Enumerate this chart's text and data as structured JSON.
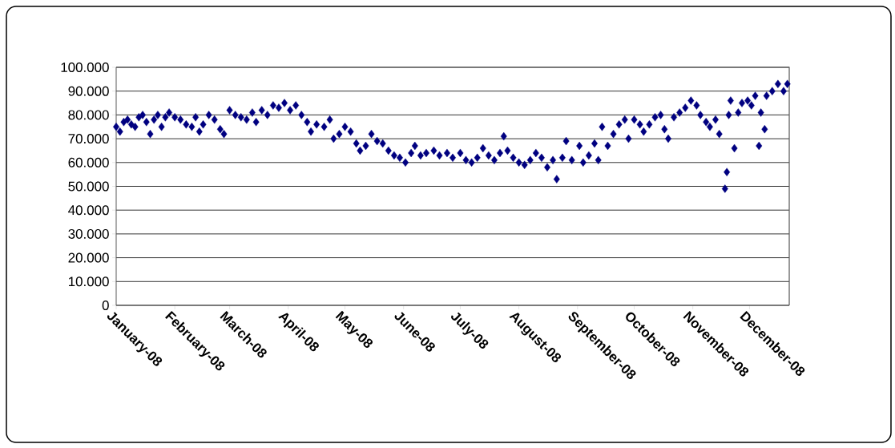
{
  "chart_data": {
    "type": "scatter",
    "color": "#000080",
    "marker": "diamond",
    "grid": "y",
    "xlim": [
      "2008-01-01",
      "2008-12-22"
    ],
    "xticks": [
      {
        "value": "2008-01-01",
        "label": "January-08"
      },
      {
        "value": "2008-02-01",
        "label": "February-08"
      },
      {
        "value": "2008-03-01",
        "label": "March-08"
      },
      {
        "value": "2008-04-01",
        "label": "April-08"
      },
      {
        "value": "2008-05-01",
        "label": "May-08"
      },
      {
        "value": "2008-06-01",
        "label": "June-08"
      },
      {
        "value": "2008-07-01",
        "label": "July-08"
      },
      {
        "value": "2008-08-01",
        "label": "August-08"
      },
      {
        "value": "2008-09-01",
        "label": "September-08"
      },
      {
        "value": "2008-10-01",
        "label": "October-08"
      },
      {
        "value": "2008-11-01",
        "label": "November-08"
      },
      {
        "value": "2008-12-01",
        "label": "December-08"
      }
    ],
    "ylim": [
      0,
      100000
    ],
    "yticks": [
      0,
      {
        "value": 10000,
        "label": "10.000"
      },
      {
        "value": 20000,
        "label": "20.000"
      },
      {
        "value": 30000,
        "label": "30.000"
      },
      {
        "value": 40000,
        "label": "40.000"
      },
      {
        "value": 50000,
        "label": "50.000"
      },
      {
        "value": 60000,
        "label": "60.000"
      },
      {
        "value": 70000,
        "label": "70.000"
      },
      {
        "value": 80000,
        "label": "80.000"
      },
      {
        "value": 90000,
        "label": "90.000"
      },
      {
        "value": 100000,
        "label": "100.000"
      }
    ],
    "x": [
      "2008-01-01",
      "2008-01-03",
      "2008-01-05",
      "2008-01-07",
      "2008-01-09",
      "2008-01-11",
      "2008-01-13",
      "2008-01-15",
      "2008-01-17",
      "2008-01-19",
      "2008-01-21",
      "2008-01-23",
      "2008-01-25",
      "2008-01-27",
      "2008-01-29",
      "2008-02-01",
      "2008-02-04",
      "2008-02-07",
      "2008-02-10",
      "2008-02-12",
      "2008-02-14",
      "2008-02-16",
      "2008-02-19",
      "2008-02-22",
      "2008-02-25",
      "2008-02-27",
      "2008-03-01",
      "2008-03-04",
      "2008-03-07",
      "2008-03-10",
      "2008-03-13",
      "2008-03-15",
      "2008-03-18",
      "2008-03-21",
      "2008-03-24",
      "2008-03-27",
      "2008-03-30",
      "2008-04-02",
      "2008-04-05",
      "2008-04-08",
      "2008-04-11",
      "2008-04-13",
      "2008-04-16",
      "2008-04-20",
      "2008-04-23",
      "2008-04-25",
      "2008-04-28",
      "2008-05-01",
      "2008-05-04",
      "2008-05-07",
      "2008-05-09",
      "2008-05-12",
      "2008-05-15",
      "2008-05-18",
      "2008-05-21",
      "2008-05-24",
      "2008-05-27",
      "2008-05-30",
      "2008-06-02",
      "2008-06-05",
      "2008-06-07",
      "2008-06-10",
      "2008-06-13",
      "2008-06-17",
      "2008-06-20",
      "2008-06-24",
      "2008-06-27",
      "2008-07-01",
      "2008-07-04",
      "2008-07-07",
      "2008-07-10",
      "2008-07-13",
      "2008-07-16",
      "2008-07-19",
      "2008-07-22",
      "2008-07-24",
      "2008-07-26",
      "2008-07-29",
      "2008-08-01",
      "2008-08-04",
      "2008-08-07",
      "2008-08-10",
      "2008-08-13",
      "2008-08-16",
      "2008-08-19",
      "2008-08-21",
      "2008-08-24",
      "2008-08-26",
      "2008-08-29",
      "2008-09-02",
      "2008-09-04",
      "2008-09-07",
      "2008-09-10",
      "2008-09-12",
      "2008-09-14",
      "2008-09-17",
      "2008-09-20",
      "2008-09-23",
      "2008-09-26",
      "2008-09-28",
      "2008-10-01",
      "2008-10-04",
      "2008-10-06",
      "2008-10-09",
      "2008-10-12",
      "2008-10-15",
      "2008-10-17",
      "2008-10-19",
      "2008-10-22",
      "2008-10-25",
      "2008-10-28",
      "2008-10-31",
      "2008-11-03",
      "2008-11-05",
      "2008-11-08",
      "2008-11-10",
      "2008-11-13",
      "2008-11-15",
      "2008-11-18",
      "2008-11-19",
      "2008-11-20",
      "2008-11-21",
      "2008-11-23",
      "2008-11-25",
      "2008-11-27",
      "2008-11-30",
      "2008-12-02",
      "2008-12-04",
      "2008-12-06",
      "2008-12-07",
      "2008-12-09",
      "2008-12-10",
      "2008-12-13",
      "2008-12-16",
      "2008-12-19",
      "2008-12-21"
    ],
    "values": [
      75000,
      73000,
      77000,
      78000,
      76000,
      75000,
      79000,
      80000,
      77000,
      72000,
      78000,
      80000,
      75000,
      79000,
      81000,
      79000,
      78000,
      76000,
      75000,
      79000,
      73000,
      76000,
      80000,
      78000,
      74000,
      72000,
      82000,
      80000,
      79000,
      78000,
      81000,
      77000,
      82000,
      80000,
      84000,
      83000,
      85000,
      82000,
      84000,
      80000,
      77000,
      73000,
      76000,
      75000,
      78000,
      70000,
      72000,
      75000,
      73000,
      68000,
      65000,
      67000,
      72000,
      69000,
      68000,
      65000,
      63000,
      62000,
      60000,
      64000,
      67000,
      63000,
      64000,
      65000,
      63000,
      64000,
      62000,
      64000,
      61000,
      60000,
      62000,
      66000,
      63000,
      61000,
      64000,
      71000,
      65000,
      62000,
      60000,
      59000,
      61000,
      64000,
      62000,
      58000,
      61000,
      53000,
      62000,
      69000,
      61000,
      67000,
      60000,
      63000,
      68000,
      61000,
      75000,
      67000,
      72000,
      76000,
      78000,
      70000,
      78000,
      76000,
      73000,
      76000,
      79000,
      80000,
      74000,
      70000,
      79000,
      81000,
      83000,
      86000,
      84000,
      80000,
      77000,
      75000,
      78000,
      72000,
      49000,
      56000,
      80000,
      86000,
      66000,
      81000,
      85000,
      86000,
      84000,
      88000,
      67000,
      81000,
      74000,
      88000,
      90000,
      93000,
      90000,
      93000
    ]
  }
}
